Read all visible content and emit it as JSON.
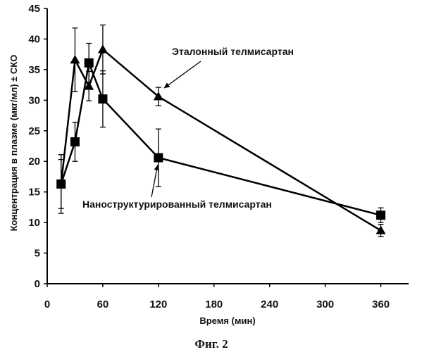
{
  "chart_data": {
    "type": "line",
    "caption": "Фиг. 2",
    "xlabel": "Время (мин)",
    "ylabel": "Концентрация в плазме (мкг/мл) ± СКО",
    "xlim": [
      0,
      390
    ],
    "ylim": [
      0,
      45
    ],
    "xticks": [
      0,
      60,
      120,
      180,
      240,
      300,
      360
    ],
    "yticks": [
      0,
      5,
      10,
      15,
      20,
      25,
      30,
      35,
      40,
      45
    ],
    "grid": false,
    "legend": "none",
    "series": [
      {
        "name": "Эталонный телмисартан",
        "marker": "triangle",
        "color": "#000000",
        "x": [
          15,
          30,
          45,
          60,
          120,
          360
        ],
        "y": [
          16.3,
          36.6,
          32.3,
          38.3,
          30.6,
          8.7
        ],
        "err": [
          4.0,
          5.2,
          2.4,
          4.0,
          1.5,
          1.0
        ]
      },
      {
        "name": "Наноструктурированный телмисартан",
        "marker": "square",
        "color": "#000000",
        "x": [
          15,
          30,
          45,
          60,
          120,
          360
        ],
        "y": [
          16.3,
          23.2,
          36.1,
          30.2,
          20.6,
          11.2
        ],
        "err": [
          4.8,
          3.2,
          3.2,
          4.6,
          4.7,
          1.2
        ]
      }
    ],
    "annotations": [
      {
        "text": "Эталонный телмисартан",
        "series": 0,
        "point_index": 4
      },
      {
        "text": "Наноструктурированный телмисартан",
        "series": 1,
        "point_index": 4
      }
    ]
  }
}
